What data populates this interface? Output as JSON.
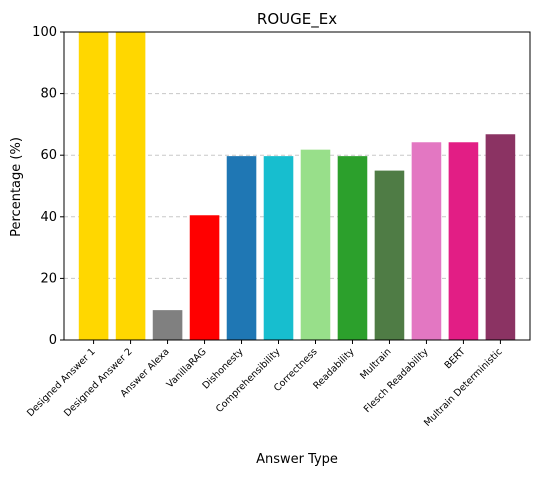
{
  "chart_data": {
    "type": "bar",
    "title": "ROUGE_Ex",
    "xlabel": "Answer Type",
    "ylabel": "Percentage (%)",
    "ylim": [
      0,
      100
    ],
    "yticks": [
      0,
      20,
      40,
      60,
      80,
      100
    ],
    "grid": "y-dashed",
    "categories": [
      "Designed Answer 1",
      "Designed Answer 2",
      "Answer Alexa",
      "VanillaRAG",
      "Dishonesty",
      "Comprehensibility",
      "Correctness",
      "Readability",
      "Multrain",
      "Flesch Readability",
      "BERT",
      "Multrain Deterministic"
    ],
    "values": [
      100,
      100,
      9.7,
      40.5,
      59.7,
      59.7,
      61.8,
      59.7,
      55,
      64.2,
      64.2,
      66.8
    ],
    "colors": [
      "#FFD700",
      "#FFD700",
      "#808080",
      "#FF0000",
      "#1F77B4",
      "#17BECF",
      "#98DF8A",
      "#2CA02C",
      "#4F7C45",
      "#E377C2",
      "#E21E85",
      "#8B3363"
    ]
  }
}
